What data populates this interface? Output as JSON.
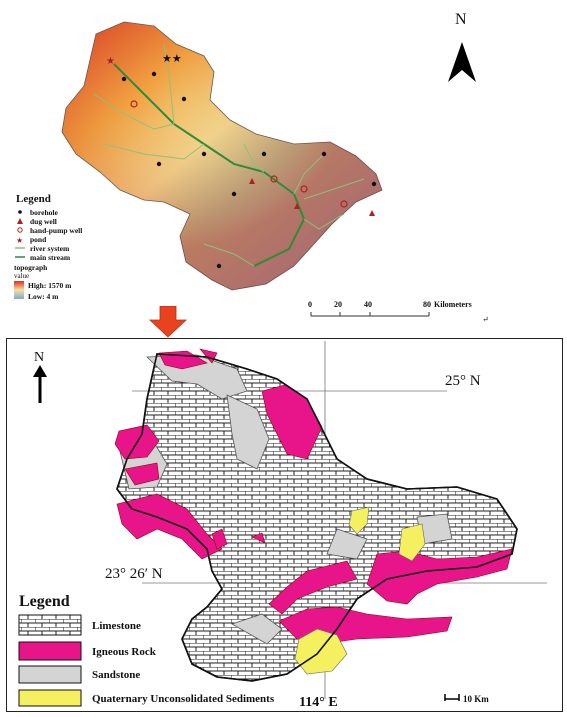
{
  "top_map": {
    "north_label": "N",
    "legend": {
      "title": "Legend",
      "items": [
        {
          "label": "borehole",
          "symbol": "dot",
          "color": "#111111"
        },
        {
          "label": "dug well",
          "symbol": "triangle",
          "color": "#b02020"
        },
        {
          "label": "hand-pump well",
          "symbol": "circle",
          "color": "#b02020"
        },
        {
          "label": "pond",
          "symbol": "star",
          "color": "#a02030"
        },
        {
          "label": "river system",
          "symbol": "line",
          "color": "#8bc27a"
        },
        {
          "label": "main stream",
          "symbol": "line",
          "color": "#2e8b3a"
        }
      ],
      "topograph_label": "topograph",
      "value_label": "value",
      "high_label": "High: 1570 m",
      "low_label": "Low: 4 m",
      "high_color": "#e03020",
      "low_color": "#7fa8d8"
    },
    "scale_bar": {
      "ticks": [
        "0",
        "20",
        "40",
        "80"
      ],
      "unit": "Kilometers"
    },
    "return_mark": "↵"
  },
  "arrow_color": "#e8431e",
  "bottom_map": {
    "north_label": "N",
    "lat_top": "25° N",
    "lat_bottom": "23° 26′ N",
    "lon_label": "114° E",
    "scale_label": "10 Km",
    "legend": {
      "title": "Legend",
      "items": [
        {
          "label": "Limestone",
          "pattern": "brick"
        },
        {
          "label": "Igneous Rock",
          "color": "#e8158a"
        },
        {
          "label": "Sandstone",
          "color": "#d4d4d4"
        },
        {
          "label": "Quaternary Unconsolidated Sediments",
          "color": "#f4f060"
        }
      ]
    }
  }
}
